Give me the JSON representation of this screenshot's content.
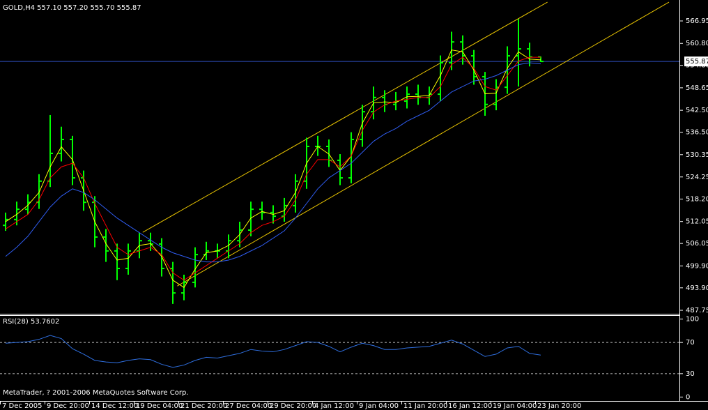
{
  "chart_data": [
    {
      "type": "candlestick",
      "title": "GOLD,H4 557.10 557.20 555.70 555.87",
      "categories": [
        "7 Dec 2005",
        null,
        null,
        null,
        "9 Dec 20:00",
        null,
        null,
        null,
        "14 Dec 12:00",
        null,
        null,
        null,
        "19 Dec 04:00",
        null,
        null,
        null,
        "21 Dec 20:00",
        null,
        null,
        null,
        "27 Dec 04:00",
        null,
        null,
        null,
        "29 Dec 20:00",
        null,
        null,
        null,
        "4 Jan 12:00",
        null,
        null,
        null,
        "9 Jan 04:00",
        null,
        null,
        null,
        "11 Jan 20:00",
        null,
        null,
        null,
        "16 Jan 12:00",
        null,
        null,
        null,
        "19 Jan 04:00",
        null,
        null,
        null,
        "23 Jan 20:00"
      ],
      "open": [
        511.0,
        512.6,
        515.4,
        517.3,
        523.1,
        530.7,
        534.5,
        524.0,
        517.3,
        507.8,
        504.0,
        499.2,
        504.0,
        506.8,
        505.9,
        499.2,
        492.5,
        495.4,
        503.0,
        504.0,
        504.0,
        506.8,
        509.7,
        515.4,
        514.5,
        513.5,
        516.4,
        523.1,
        532.6,
        532.6,
        528.8,
        524.0,
        534.5,
        542.1,
        546.0,
        544.1,
        545.0,
        546.9,
        546.0,
        546.9,
        555.5,
        561.2,
        557.4,
        551.7,
        544.1,
        548.8,
        557.4,
        559.3,
        557.1
      ],
      "high": [
        514.5,
        517.5,
        519.5,
        525,
        541.2,
        538,
        535.5,
        526,
        519,
        510,
        506,
        506,
        509,
        509,
        507.5,
        501,
        497.5,
        505,
        506.5,
        506,
        508.5,
        512,
        517.5,
        517.5,
        516.5,
        518.5,
        525,
        535,
        535.5,
        534.5,
        530.5,
        536.5,
        544,
        549,
        548,
        547.5,
        549,
        549.5,
        549,
        557.5,
        564,
        563,
        559,
        553,
        551,
        560,
        567.5,
        561,
        557.2
      ],
      "low": [
        509.5,
        511,
        514,
        515.5,
        521.5,
        528.5,
        522,
        515,
        505,
        501,
        496,
        497.5,
        502,
        504,
        497,
        489.5,
        490.5,
        494,
        501.5,
        502,
        502,
        505,
        508,
        512.5,
        511.5,
        512,
        514.5,
        521,
        530,
        527,
        522,
        522.5,
        532.5,
        540,
        542,
        542.5,
        543,
        544,
        544,
        545,
        553.5,
        555,
        549.5,
        541,
        542.5,
        547,
        549,
        554.5,
        555.7
      ],
      "close": [
        512.6,
        515.4,
        517.3,
        523.1,
        530.7,
        534.5,
        524.0,
        517.3,
        507.8,
        504.0,
        499.2,
        504.0,
        506.8,
        505.9,
        499.2,
        492.5,
        495.4,
        503.0,
        504.0,
        504.0,
        506.8,
        509.7,
        515.4,
        514.5,
        513.5,
        516.4,
        523.1,
        532.6,
        532.6,
        528.8,
        524.0,
        534.5,
        542.1,
        546.0,
        544.1,
        545.0,
        546.9,
        546.0,
        546.9,
        555.5,
        561.2,
        557.4,
        551.7,
        544.1,
        548.8,
        557.4,
        559.3,
        557.1,
        555.87
      ],
      "color": "#00ff00",
      "series": [
        {
          "color": "#ffff00",
          "values": [
            512,
            514,
            516.5,
            520,
            527,
            532.5,
            529,
            520.5,
            512,
            506,
            501.5,
            502,
            505.5,
            506,
            502.5,
            496,
            494,
            499,
            503.5,
            504,
            505.5,
            508.5,
            513,
            514.8,
            514,
            515,
            520,
            528,
            532.6,
            530.5,
            526,
            530,
            539,
            544.5,
            544.8,
            544.6,
            546.2,
            546.3,
            546.6,
            552,
            559,
            558.5,
            553.5,
            547,
            547.2,
            554,
            558.5,
            556.5,
            556.3
          ]
        },
        {
          "color": "#ff0000",
          "values": [
            510,
            512,
            514,
            518,
            524,
            527,
            528,
            524,
            517,
            511,
            505,
            503,
            504,
            505,
            503,
            498,
            496,
            498,
            500,
            502,
            504,
            506,
            509,
            511,
            512,
            513.5,
            518,
            525,
            529,
            529,
            527,
            530,
            537,
            542,
            544,
            545,
            545.5,
            546,
            546,
            549,
            555,
            557,
            554,
            549,
            548,
            552,
            556,
            557,
            557
          ]
        },
        {
          "color": "#2f5cf0",
          "values": [
            502.5,
            505,
            508,
            512,
            516,
            519,
            521,
            520,
            518,
            515.5,
            513,
            511,
            509,
            507,
            505,
            503.5,
            502.5,
            501.5,
            501,
            501,
            501.5,
            502.5,
            504,
            505.5,
            507.5,
            509.5,
            513,
            517,
            521,
            524,
            526,
            528,
            531,
            534,
            536,
            537.5,
            539.5,
            541,
            542.5,
            545,
            547.5,
            549,
            550.5,
            551,
            552,
            553.5,
            555,
            555.5,
            555.2
          ]
        }
      ],
      "trendlines": [
        {
          "color": "#e6c200",
          "x": [
            12.3,
            48.6
          ],
          "y": [
            509.1,
            572.1
          ]
        },
        {
          "color": "#e6c200",
          "x": [
            15.4,
            59.5
          ],
          "y": [
            494.4,
            572.1
          ]
        }
      ],
      "last_price": 555.87,
      "ylim": [
        486.8,
        572.68
      ],
      "yticks": [
        {
          "value": 566.95,
          "label": "566.95"
        },
        {
          "value": 560.8,
          "label": "560.80"
        },
        {
          "value": 554.8,
          "label": "554.80"
        },
        {
          "value": 548.65,
          "label": "548.65"
        },
        {
          "value": 542.5,
          "label": "542.50"
        },
        {
          "value": 536.5,
          "label": "536.50"
        },
        {
          "value": 530.35,
          "label": "530.35"
        },
        {
          "value": 524.25,
          "label": "524.25"
        },
        {
          "value": 518.2,
          "label": "518.20"
        },
        {
          "value": 512.05,
          "label": "512.05"
        },
        {
          "value": 506.05,
          "label": "506.05"
        },
        {
          "value": 499.9,
          "label": "499.90"
        },
        {
          "value": 493.9,
          "label": "493.90"
        },
        {
          "value": 487.75,
          "label": "487.75"
        }
      ]
    },
    {
      "type": "line",
      "title": "RSI(28) 53.7602",
      "series": [
        {
          "color": "#2f6fe0",
          "values": [
            69,
            70,
            71,
            74,
            79,
            75,
            62,
            55,
            47,
            45,
            44,
            47,
            49,
            48,
            42,
            38,
            41,
            47,
            51,
            50,
            53,
            56,
            61,
            59,
            58,
            61,
            66,
            71,
            70,
            65,
            58,
            64,
            69,
            66,
            61,
            61,
            63,
            64,
            65,
            69,
            73,
            68,
            60,
            52,
            55,
            63,
            65,
            56,
            53.76
          ]
        }
      ],
      "ylim": [
        -5,
        105
      ],
      "yticks": [
        100,
        70,
        30,
        0
      ],
      "levels": [
        70,
        30
      ]
    }
  ],
  "footer": "MetaTrader, ? 2001-2006 MetaQuotes Software Corp."
}
